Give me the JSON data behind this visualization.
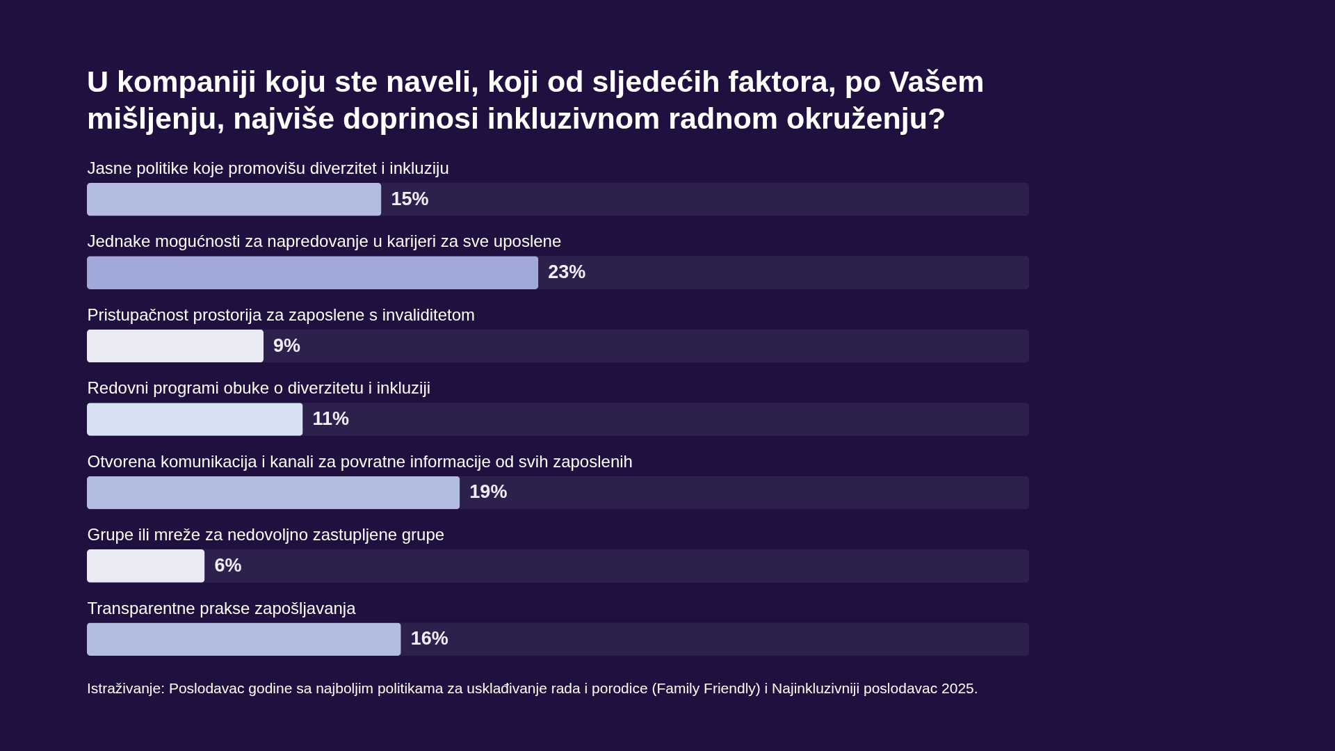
{
  "chart_data": {
    "type": "bar",
    "orientation": "horizontal",
    "title": "U kompaniji koju ste naveli, koji od sljedećih faktora, po Vašem mišljenju, najviše doprinosi inkluzivnom radnom okruženju?",
    "categories": [
      "Jasne politike koje promovišu diverzitet i inkluziju",
      "Jednake mogućnosti za napredovanje u karijeri za sve uposlene",
      "Pristupačnost prostorija za zaposlene s invaliditetom",
      "Redovni programi obuke o diverzitetu i inkluziji",
      "Otvorena komunikacija i kanali za povratne informacije od svih zaposlenih",
      "Grupe ili mreže za nedovoljno zastupljene grupe",
      "Transparentne prakse zapošljavanja"
    ],
    "values": [
      15,
      23,
      9,
      11,
      19,
      6,
      16
    ],
    "colors": [
      "#b3bde2",
      "#a1a9d8",
      "#eaeaf5",
      "#d8e0f3",
      "#b3bde2",
      "#eaeaf5",
      "#b3bde2"
    ],
    "value_labels": [
      "15%",
      "23%",
      "9%",
      "11%",
      "19%",
      "6%",
      "16%"
    ],
    "xlim": [
      0,
      48
    ],
    "tick_labels": "y",
    "annotations": [
      "Istraživanje: Poslodavac godine sa najboljim politikama za usklađivanje rada i porodice (Family Friendly) i Najinkluzivniji poslodavac 2025."
    ]
  }
}
